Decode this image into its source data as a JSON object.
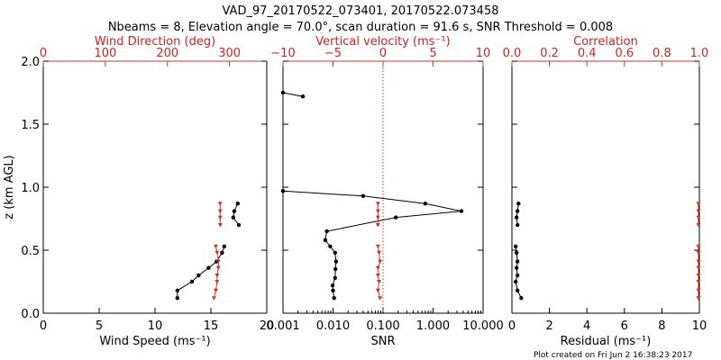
{
  "title_line1": "VAD_97_20170522_073401, 20170522.073458",
  "title_line2": "Nbeams = 8, Elevation angle = 70.0°, scan duration = 91.6 s, SNR Threshold = 0.008",
  "footer": "Plot created on Fri Jun  2 16:38:23 2017",
  "colors": {
    "black": "#000000",
    "red": "#c0392b"
  },
  "chart_data": [
    {
      "type": "line",
      "ylabel": "z (km AGL)",
      "ylim": [
        0,
        2.0
      ],
      "y_ticks": [
        "0.0",
        "0.5",
        "1.0",
        "1.5",
        "2.0"
      ],
      "y_tick_values": [
        0,
        0.5,
        1.0,
        1.5,
        2.0
      ],
      "bottom_axis": {
        "label": "Wind Speed (ms⁻¹)",
        "lim": [
          0,
          20
        ],
        "ticks": [
          0,
          5,
          10,
          15,
          20
        ],
        "tick_labels": [
          "0",
          "5",
          "10",
          "15",
          "20"
        ]
      },
      "top_axis": {
        "label": "Wind Direction (deg)",
        "lim": [
          0,
          360
        ],
        "ticks": [
          0,
          100,
          200,
          300
        ],
        "tick_labels": [
          "0",
          "100",
          "200",
          "300"
        ]
      },
      "series": [
        {
          "axis": "bottom",
          "color": "#000000",
          "segments": [
            [
              [
                12.0,
                0.12
              ],
              [
                12.0,
                0.18
              ],
              [
                13.3,
                0.25
              ],
              [
                13.9,
                0.3
              ],
              [
                14.8,
                0.36
              ],
              [
                15.5,
                0.41
              ],
              [
                16.0,
                0.48
              ],
              [
                16.2,
                0.53
              ]
            ],
            [
              [
                17.5,
                0.7
              ],
              [
                17.0,
                0.76
              ],
              [
                17.1,
                0.81
              ],
              [
                17.4,
                0.87
              ]
            ]
          ]
        },
        {
          "axis": "top",
          "color": "#c0392b",
          "segments": [
            [
              [
                275,
                0.12
              ],
              [
                278,
                0.18
              ],
              [
                280,
                0.25
              ],
              [
                280,
                0.3
              ],
              [
                282,
                0.36
              ],
              [
                282,
                0.41
              ],
              [
                280,
                0.48
              ],
              [
                278,
                0.53
              ]
            ],
            [
              [
                285,
                0.7
              ],
              [
                285,
                0.76
              ],
              [
                285,
                0.81
              ],
              [
                285,
                0.87
              ]
            ]
          ]
        }
      ]
    },
    {
      "type": "line",
      "ylim": [
        0,
        2.0
      ],
      "bottom_axis": {
        "label": "SNR",
        "scale": "log",
        "lim": [
          0.001,
          10
        ],
        "ticks": [
          0.001,
          0.01,
          0.1,
          1,
          10
        ],
        "tick_labels": [
          "0.001",
          "0.010",
          "0.100",
          "1.000",
          "10.000"
        ]
      },
      "top_axis": {
        "label": "Vertical velocity (ms⁻¹)",
        "lim": [
          -10,
          10
        ],
        "ticks": [
          -10,
          -5,
          0,
          5,
          10
        ],
        "tick_labels": [
          "−10",
          "−5",
          "0",
          "5",
          "10"
        ]
      },
      "zero_line_top_axis": 0,
      "series": [
        {
          "axis": "bottom",
          "color": "#000000",
          "segments": [
            [
              [
                0.0105,
                0.12
              ],
              [
                0.01,
                0.18
              ],
              [
                0.0098,
                0.22
              ],
              [
                0.011,
                0.28
              ],
              [
                0.0112,
                0.35
              ],
              [
                0.0115,
                0.41
              ],
              [
                0.011,
                0.48
              ],
              [
                0.0088,
                0.53
              ],
              [
                0.007,
                0.58
              ],
              [
                0.0075,
                0.65
              ],
              [
                0.18,
                0.76
              ],
              [
                3.7,
                0.81
              ],
              [
                0.7,
                0.87
              ],
              [
                0.04,
                0.93
              ],
              [
                0.001,
                0.97
              ]
            ],
            [
              [
                0.001,
                1.75
              ],
              [
                0.0025,
                1.72
              ]
            ]
          ]
        },
        {
          "axis": "top",
          "color": "#c0392b",
          "segments": [
            [
              [
                -0.3,
                0.12
              ],
              [
                -0.5,
                0.18
              ],
              [
                -0.4,
                0.25
              ],
              [
                -0.5,
                0.3
              ],
              [
                -0.5,
                0.36
              ],
              [
                -0.3,
                0.41
              ],
              [
                -0.4,
                0.48
              ],
              [
                -0.5,
                0.53
              ]
            ],
            [
              [
                -0.5,
                0.7
              ],
              [
                -0.5,
                0.76
              ],
              [
                -0.5,
                0.81
              ],
              [
                -0.5,
                0.87
              ]
            ]
          ]
        }
      ]
    },
    {
      "type": "line",
      "ylim": [
        0,
        2.0
      ],
      "bottom_axis": {
        "label": "Residual (ms⁻¹)",
        "lim": [
          0,
          10
        ],
        "ticks": [
          0,
          2,
          4,
          6,
          8,
          10
        ],
        "tick_labels": [
          "0",
          "2",
          "4",
          "6",
          "8",
          "10"
        ]
      },
      "top_axis": {
        "label": "Correlation",
        "lim": [
          0,
          1.0
        ],
        "ticks": [
          0,
          0.2,
          0.4,
          0.6,
          0.8,
          1.0
        ],
        "tick_labels": [
          "0.0",
          "0.2",
          "0.4",
          "0.6",
          "0.8",
          "1.0"
        ]
      },
      "series": [
        {
          "axis": "bottom",
          "color": "#000000",
          "segments": [
            [
              [
                0.5,
                0.12
              ],
              [
                0.3,
                0.18
              ],
              [
                0.2,
                0.25
              ],
              [
                0.3,
                0.3
              ],
              [
                0.25,
                0.36
              ],
              [
                0.3,
                0.41
              ],
              [
                0.25,
                0.48
              ],
              [
                0.2,
                0.53
              ]
            ],
            [
              [
                0.3,
                0.7
              ],
              [
                0.25,
                0.76
              ],
              [
                0.3,
                0.81
              ],
              [
                0.35,
                0.87
              ]
            ]
          ]
        },
        {
          "axis": "top",
          "color": "#c0392b",
          "segments": [
            [
              [
                0.995,
                0.12
              ],
              [
                0.995,
                0.18
              ],
              [
                0.995,
                0.25
              ],
              [
                0.995,
                0.3
              ],
              [
                0.995,
                0.36
              ],
              [
                0.995,
                0.41
              ],
              [
                0.995,
                0.48
              ],
              [
                0.995,
                0.53
              ]
            ],
            [
              [
                0.995,
                0.7
              ],
              [
                0.995,
                0.76
              ],
              [
                0.995,
                0.81
              ],
              [
                0.995,
                0.87
              ]
            ]
          ]
        }
      ]
    }
  ]
}
